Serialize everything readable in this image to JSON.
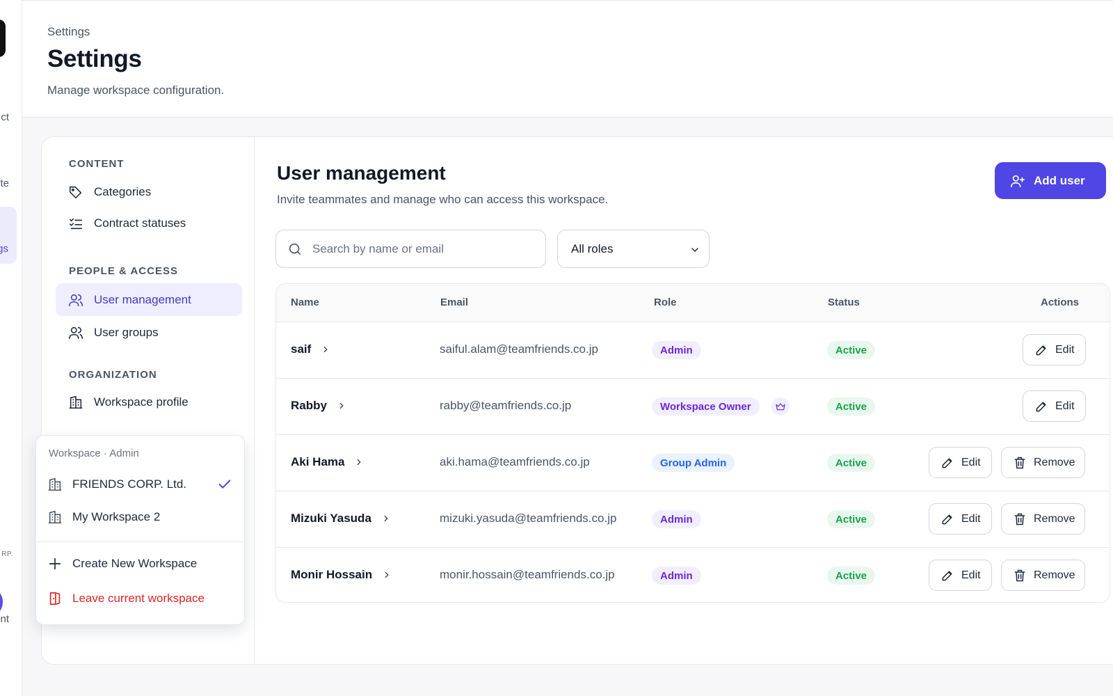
{
  "rail": {
    "partial_labels": [
      "ct",
      "te",
      "gs",
      "RP.",
      "nt"
    ]
  },
  "header": {
    "breadcrumb": "Settings",
    "title": "Settings",
    "subtitle": "Manage workspace configuration."
  },
  "settings_nav": {
    "sections": [
      {
        "title": "CONTENT",
        "items": [
          {
            "label": "Categories",
            "icon": "tag-icon",
            "active": false
          },
          {
            "label": "Contract statuses",
            "icon": "checklist-icon",
            "active": false
          }
        ]
      },
      {
        "title": "PEOPLE & ACCESS",
        "items": [
          {
            "label": "User management",
            "icon": "users-icon",
            "active": true
          },
          {
            "label": "User groups",
            "icon": "users-icon",
            "active": false
          }
        ]
      },
      {
        "title": "ORGANIZATION",
        "items": [
          {
            "label": "Workspace profile",
            "icon": "building-icon",
            "active": false
          }
        ]
      }
    ]
  },
  "workspace_menu": {
    "heading": "Workspace · Admin",
    "workspaces": [
      {
        "name": "FRIENDS CORP. Ltd.",
        "selected": true
      },
      {
        "name": "My Workspace 2",
        "selected": false
      }
    ],
    "create_label": "Create New Workspace",
    "leave_label": "Leave current workspace",
    "danger_color": "#dc2626"
  },
  "user_management": {
    "title": "User management",
    "subtitle": "Invite teammates and manage who can access this workspace.",
    "add_user_label": "Add user",
    "search_placeholder": "Search by name or email",
    "role_filter_value": "All roles",
    "accent_color": "#4f46e5",
    "columns": [
      "Name",
      "Email",
      "Role",
      "Status",
      "Actions"
    ],
    "users": [
      {
        "name": "saif",
        "email": "saiful.alam@teamfriends.co.jp",
        "role": "Admin",
        "owner": false,
        "status": "Active",
        "can_remove": false
      },
      {
        "name": "Rabby",
        "email": "rabby@teamfriends.co.jp",
        "role": "Workspace Owner",
        "owner": true,
        "status": "Active",
        "can_remove": false
      },
      {
        "name": "Aki Hama",
        "email": "aki.hama@teamfriends.co.jp",
        "role": "Group Admin",
        "owner": false,
        "status": "Active",
        "can_remove": true
      },
      {
        "name": "Mizuki Yasuda",
        "email": "mizuki.yasuda@teamfriends.co.jp",
        "role": "Admin",
        "owner": false,
        "status": "Active",
        "can_remove": true
      },
      {
        "name": "Monir Hossain",
        "email": "monir.hossain@teamfriends.co.jp",
        "role": "Admin",
        "owner": false,
        "status": "Active",
        "can_remove": true
      }
    ],
    "edit_label": "Edit",
    "remove_label": "Remove"
  }
}
